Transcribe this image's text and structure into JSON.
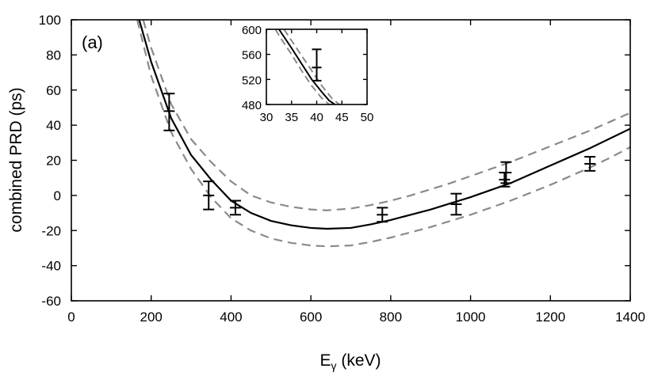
{
  "chart_data": {
    "type": "scatter",
    "panel_label": "(a)",
    "xlabel_main": "E",
    "xlabel_sub": "γ",
    "xlabel_unit": " (keV)",
    "ylabel": "combined PRD (ps)",
    "xlim": [
      0,
      1400
    ],
    "ylim": [
      -60,
      100
    ],
    "xticks": [
      0,
      200,
      400,
      600,
      800,
      1000,
      1200,
      1400
    ],
    "yticks": [
      -60,
      -40,
      -20,
      0,
      20,
      40,
      60,
      80,
      100
    ],
    "fit_curve": {
      "name": "fit",
      "x": [
        170,
        200,
        250,
        300,
        350,
        400,
        450,
        500,
        550,
        600,
        640,
        700,
        750,
        800,
        850,
        900,
        950,
        1000,
        1050,
        1100,
        1150,
        1200,
        1250,
        1300,
        1350,
        1400
      ],
      "y": [
        100,
        76,
        44,
        23,
        9,
        -3,
        -10,
        -14.5,
        -17,
        -18.5,
        -19,
        -18.5,
        -16.5,
        -14,
        -11,
        -8,
        -4.5,
        -1,
        3,
        7,
        12,
        17,
        22,
        27,
        32.5,
        38
      ]
    },
    "uncertainty_upper": {
      "name": "upper band",
      "x": [
        180,
        200,
        250,
        300,
        350,
        400,
        450,
        500,
        550,
        600,
        640,
        700,
        750,
        800,
        850,
        900,
        950,
        1000,
        1050,
        1100,
        1150,
        1200,
        1250,
        1300,
        1350,
        1400
      ],
      "y": [
        100,
        84,
        52,
        32,
        19,
        8,
        0,
        -4,
        -6.5,
        -8,
        -8.5,
        -7.5,
        -5.5,
        -3,
        0,
        3.5,
        7,
        11,
        15,
        19,
        23.5,
        28,
        32.5,
        37,
        42,
        47
      ]
    },
    "uncertainty_lower": {
      "name": "lower band",
      "x": [
        165,
        200,
        250,
        300,
        350,
        400,
        450,
        500,
        550,
        600,
        640,
        700,
        750,
        800,
        850,
        900,
        950,
        1000,
        1050,
        1100,
        1150,
        1200,
        1250,
        1300,
        1350,
        1400
      ],
      "y": [
        100,
        68,
        36,
        15,
        -1,
        -13,
        -20,
        -24.5,
        -27,
        -28.5,
        -29,
        -28.5,
        -26.5,
        -24,
        -21,
        -18,
        -14.5,
        -11,
        -7,
        -3,
        1.5,
        6,
        11,
        16,
        21.5,
        27.5
      ]
    },
    "data_points": [
      {
        "x": 245,
        "y": 48,
        "yerr_low": 11,
        "yerr_high": 10
      },
      {
        "x": 344,
        "y": 0,
        "yerr_low": 8,
        "yerr_high": 8
      },
      {
        "x": 411,
        "y": -7,
        "yerr_low": 4,
        "yerr_high": 4
      },
      {
        "x": 779,
        "y": -11,
        "yerr_low": 4,
        "yerr_high": 4
      },
      {
        "x": 964,
        "y": -5,
        "yerr_low": 6,
        "yerr_high": 6
      },
      {
        "x": 1085,
        "y": 9,
        "yerr_low": 4,
        "yerr_high": 4
      },
      {
        "x": 1089,
        "y": 13,
        "yerr_low": 6,
        "yerr_high": 6
      },
      {
        "x": 1299,
        "y": 18,
        "yerr_low": 4,
        "yerr_high": 4
      }
    ],
    "inset": {
      "xlim": [
        30,
        50
      ],
      "ylim": [
        480,
        600
      ],
      "xticks": [
        30,
        35,
        40,
        45,
        50
      ],
      "yticks": [
        480,
        520,
        560,
        600
      ],
      "fit_curve": {
        "x": [
          32.5,
          33.5,
          35,
          37,
          39,
          41,
          42.5,
          43.6
        ],
        "y": [
          600,
          588,
          570,
          545,
          520,
          500,
          486,
          480
        ]
      },
      "uncertainty_upper": {
        "x": [
          33.5,
          35,
          37,
          39,
          41,
          43,
          44.5,
          44.8
        ],
        "y": [
          600,
          582,
          558,
          534,
          510,
          490,
          480,
          480
        ]
      },
      "uncertainty_lower": {
        "x": [
          31.8,
          33,
          35,
          37,
          39,
          41,
          42.5,
          42.7
        ],
        "y": [
          600,
          584,
          560,
          534,
          510,
          490,
          480,
          480
        ]
      },
      "data_points": [
        {
          "x": 40,
          "y": 539,
          "yerr_low": 21,
          "yerr_high": 29
        }
      ]
    }
  }
}
